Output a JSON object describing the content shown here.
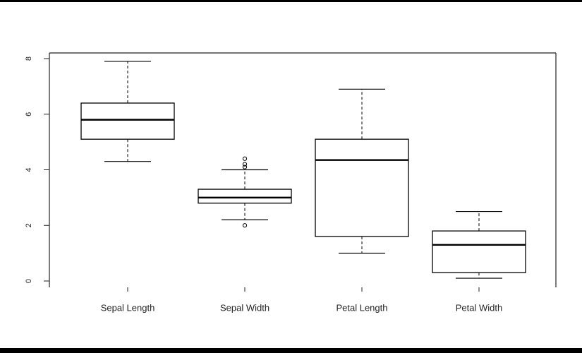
{
  "colors": {
    "border_band": "#000000",
    "axis": "#222222",
    "box_stroke": "#000000",
    "median": "#000000"
  },
  "chart_data": {
    "type": "box",
    "categories": [
      "Sepal Length",
      "Sepal Width",
      "Petal Length",
      "Petal Width"
    ],
    "series": [
      {
        "stats": [
          {
            "whisker_low": 4.3,
            "q1": 5.1,
            "median": 5.8,
            "q3": 6.4,
            "whisker_high": 7.9,
            "outliers": []
          },
          {
            "whisker_low": 2.2,
            "q1": 2.8,
            "median": 3.0,
            "q3": 3.3,
            "whisker_high": 4.0,
            "outliers": [
              4.1,
              4.2,
              4.4,
              2.0
            ]
          },
          {
            "whisker_low": 1.0,
            "q1": 1.6,
            "median": 4.35,
            "q3": 5.1,
            "whisker_high": 6.9,
            "outliers": []
          },
          {
            "whisker_low": 0.1,
            "q1": 0.3,
            "median": 1.3,
            "q3": 1.8,
            "whisker_high": 2.5,
            "outliers": []
          }
        ]
      }
    ],
    "yticks": [
      0,
      2,
      4,
      6,
      8
    ],
    "ylim": [
      0,
      8
    ],
    "grid": false,
    "legend": "none"
  }
}
